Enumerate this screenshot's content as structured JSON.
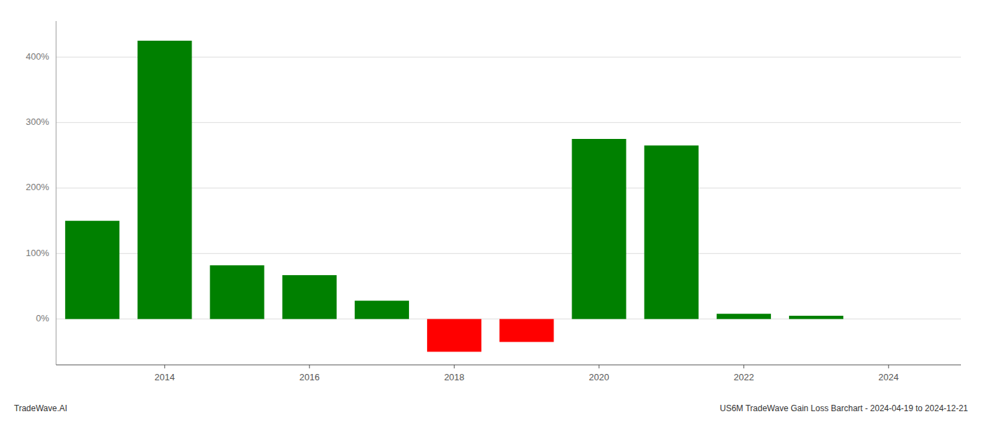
{
  "chart_data": {
    "type": "bar",
    "title": "US6M TradeWave Gain Loss Barchart - 2024-04-19 to 2024-12-21",
    "annotations": [
      "TradeWave.AI"
    ],
    "x": [
      2013,
      2014,
      2015,
      2016,
      2017,
      2018,
      2019,
      2020,
      2021,
      2022,
      2023,
      2024
    ],
    "values": [
      150,
      425,
      82,
      67,
      28,
      -50,
      -35,
      275,
      265,
      8,
      5,
      0
    ],
    "colors": [
      "#008000",
      "#008000",
      "#008000",
      "#008000",
      "#008000",
      "#ff0000",
      "#ff0000",
      "#008000",
      "#008000",
      "#008000",
      "#008000",
      "#008000"
    ],
    "xlim": [
      2012.5,
      2025.0
    ],
    "xticks": [
      2014,
      2016,
      2018,
      2020,
      2022,
      2024
    ],
    "ylim": [
      -70,
      455
    ],
    "yticks": [
      {
        "value": 0,
        "label": "0%"
      },
      {
        "value": 100,
        "label": "100%"
      },
      {
        "value": 200,
        "label": "200%"
      },
      {
        "value": 300,
        "label": "300%"
      },
      {
        "value": 400,
        "label": "400%"
      }
    ],
    "grid": true
  }
}
